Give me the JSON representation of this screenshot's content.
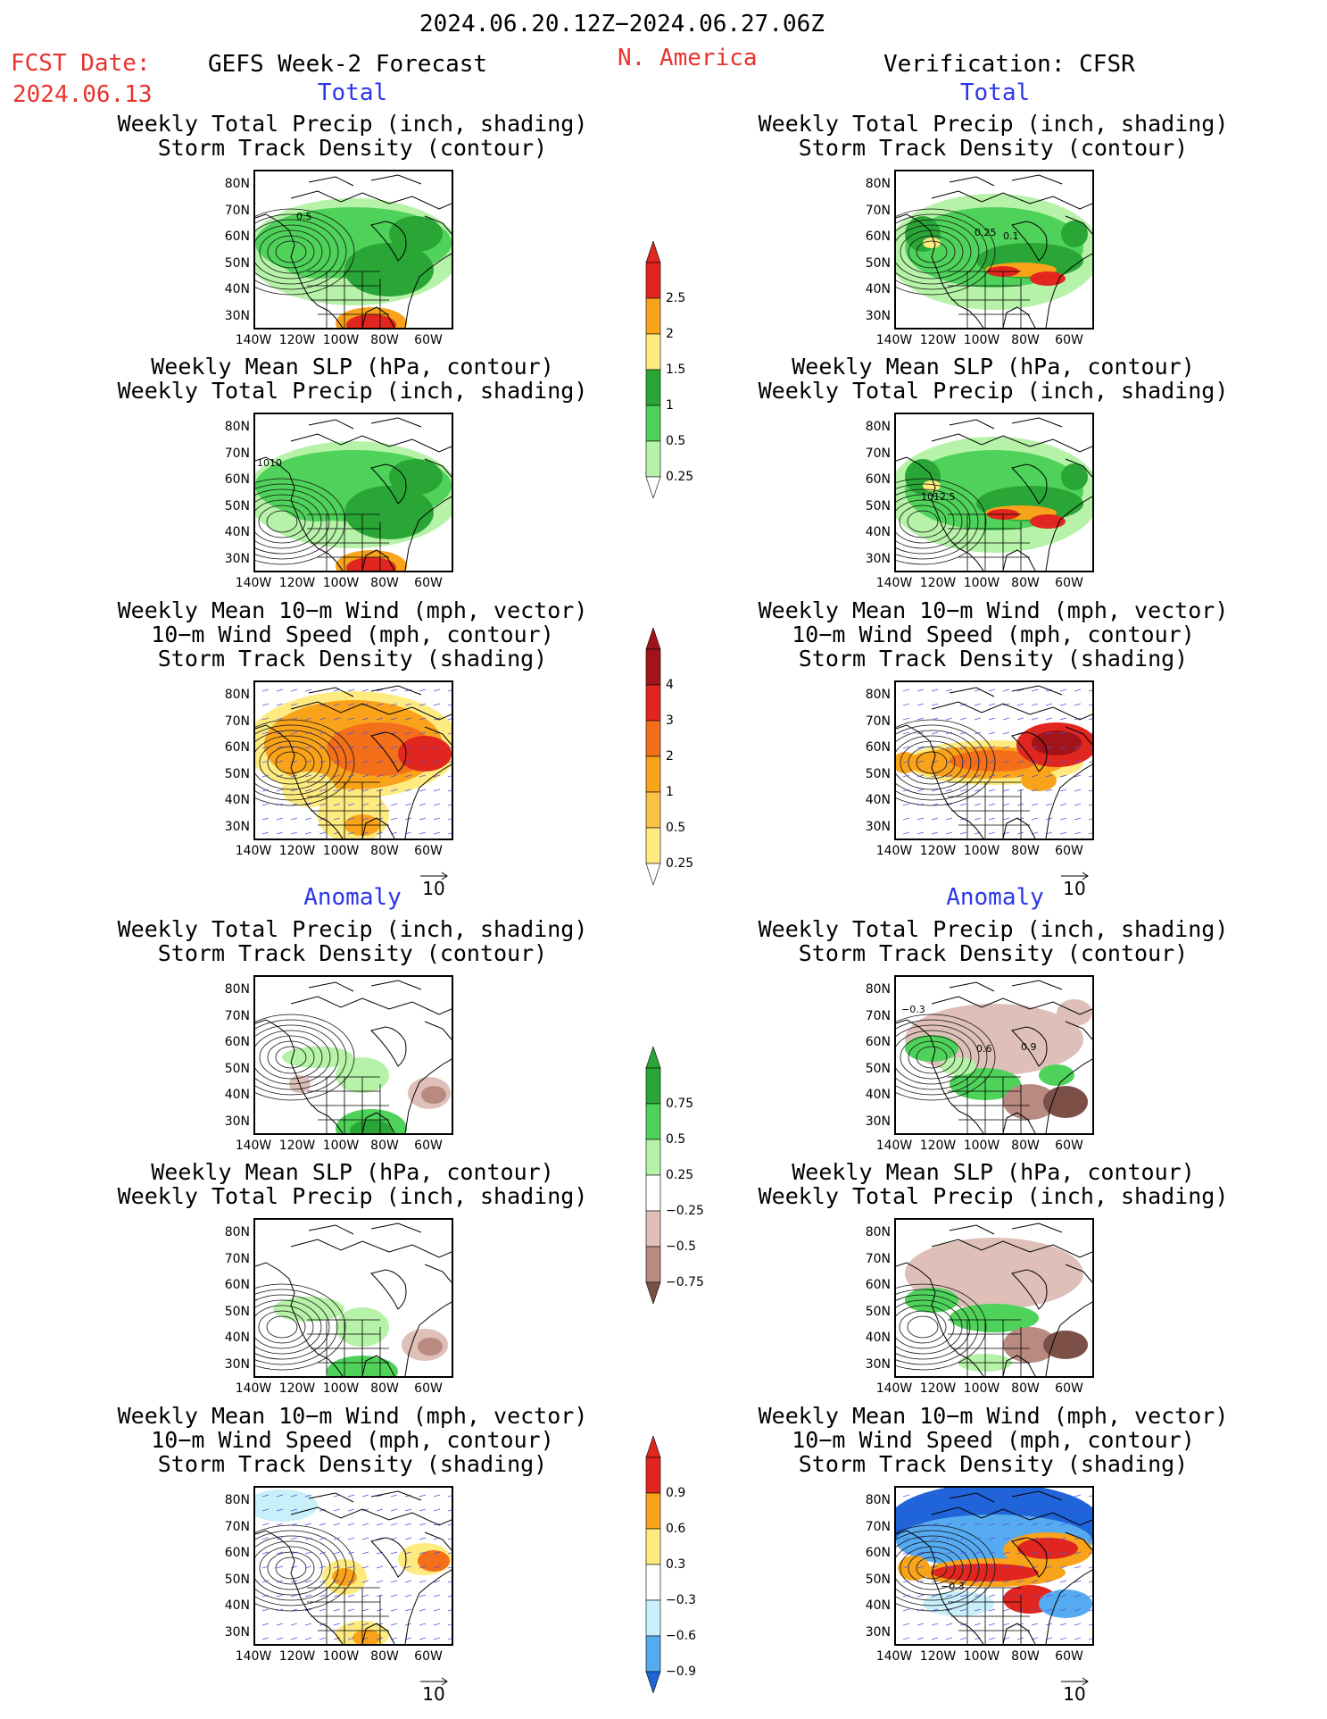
{
  "header": {
    "period": "2024.06.20.12Z−2024.06.27.06Z",
    "fcst_label": "FCST Date:",
    "fcst_date": "2024.06.13",
    "model": "GEFS Week-2 Forecast",
    "region": "N. America",
    "verification": "Verification: CFSR"
  },
  "sections": {
    "total": "Total",
    "anomaly": "Anomaly"
  },
  "panel_titles": {
    "precip_track": [
      "Weekly Total Precip (inch, shading)",
      "Storm Track Density (contour)"
    ],
    "slp_precip": [
      "Weekly Mean SLP (hPa, contour)",
      "Weekly Total Precip (inch, shading)"
    ],
    "wind_track": [
      "Weekly Mean 10−m Wind (mph, vector)",
      "10−m Wind Speed (mph, contour)",
      "Storm Track Density (shading)"
    ]
  },
  "axes": {
    "lat_labels": [
      "80N",
      "70N",
      "60N",
      "50N",
      "40N",
      "30N"
    ],
    "lon_labels": [
      "140W",
      "120W",
      "100W",
      "80W",
      "60W"
    ]
  },
  "vector_ref": "10",
  "colorbars": {
    "precip_total": [
      "2.5",
      "2",
      "1.5",
      "1",
      "0.5",
      "0.25"
    ],
    "track_total": [
      "4",
      "3",
      "2",
      "1",
      "0.5",
      "0.25"
    ],
    "precip_anom": [
      "0.75",
      "0.5",
      "0.25",
      "−0.25",
      "−0.5",
      "−0.75"
    ],
    "track_anom": [
      "0.9",
      "0.6",
      "0.3",
      "−0.3",
      "−0.6",
      "−0.9"
    ]
  },
  "contour_labels": {
    "fc_precip_total": "0.5",
    "ver_precip_total_a": "0.25",
    "ver_precip_total_b": "0.1",
    "fc_slp_total": "1010",
    "ver_slp_total": "1012.5",
    "ver_precip_anom_a": "−0.3",
    "ver_precip_anom_b": "0.6",
    "ver_precip_anom_c": "0.9",
    "ver_wind_anom": "−0.3"
  },
  "colors": {
    "green_light": "#b6f2a8",
    "green_mid": "#4fd25a",
    "green_dark": "#2aa636",
    "yellow": "#fdeb80",
    "orange": "#f9a31b",
    "red": "#e0261e",
    "dark_red": "#a0141a",
    "brown_light": "#dec0b8",
    "brown_mid": "#b88a80",
    "brown_dark": "#7c5046",
    "cyan_light": "#c8f0fa",
    "blue_mid": "#55aaf0",
    "blue_dark": "#1f64d8"
  }
}
